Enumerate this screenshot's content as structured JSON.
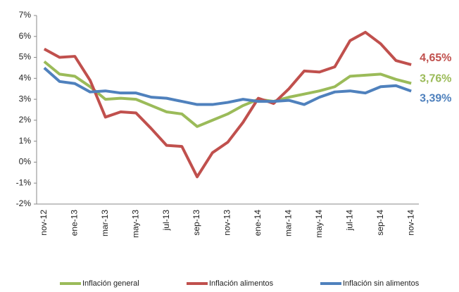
{
  "chart_data": {
    "type": "line",
    "categories": [
      "nov-12",
      null,
      "ene-13",
      null,
      "mar-13",
      null,
      "may-13",
      null,
      "jul-13",
      null,
      "sep-13",
      null,
      "nov-13",
      null,
      "ene-14",
      null,
      "mar-14",
      null,
      "may-14",
      null,
      "jul-14",
      null,
      "sep-14",
      null,
      "nov-14"
    ],
    "series": [
      {
        "name": "Inflación general",
        "color": "#9bbb59",
        "values": [
          4.8,
          4.2,
          4.1,
          3.6,
          3.0,
          3.05,
          3.0,
          2.7,
          2.4,
          2.3,
          1.7,
          2.0,
          2.3,
          2.7,
          3.0,
          2.9,
          3.1,
          3.25,
          3.4,
          3.6,
          4.1,
          4.15,
          4.2,
          3.95,
          3.76
        ],
        "value_labels": [
          null,
          null,
          null,
          null,
          null,
          null,
          null,
          null,
          null,
          null,
          null,
          null,
          null,
          null,
          null,
          null,
          null,
          null,
          null,
          null,
          null,
          null,
          null,
          null,
          "3,76%"
        ]
      },
      {
        "name": "Inflación alimentos",
        "color": "#c0504d",
        "values": [
          5.4,
          5.0,
          5.05,
          3.9,
          2.15,
          2.4,
          2.35,
          1.6,
          0.8,
          0.75,
          -0.7,
          0.45,
          0.95,
          1.9,
          3.05,
          2.8,
          3.5,
          4.35,
          4.3,
          4.55,
          5.8,
          6.2,
          5.65,
          4.85,
          4.65
        ],
        "value_labels": [
          null,
          null,
          null,
          null,
          null,
          null,
          null,
          null,
          null,
          null,
          null,
          null,
          null,
          null,
          null,
          null,
          null,
          null,
          null,
          null,
          null,
          null,
          null,
          null,
          "4,65%"
        ]
      },
      {
        "name": "Inflación sin alimentos",
        "color": "#4f81bd",
        "values": [
          4.5,
          3.85,
          3.75,
          3.35,
          3.4,
          3.3,
          3.3,
          3.1,
          3.05,
          2.9,
          2.75,
          2.75,
          2.85,
          3.0,
          2.9,
          2.9,
          2.95,
          2.75,
          3.1,
          3.35,
          3.4,
          3.3,
          3.6,
          3.65,
          3.39
        ],
        "value_labels": [
          null,
          null,
          null,
          null,
          null,
          null,
          null,
          null,
          null,
          null,
          null,
          null,
          null,
          null,
          null,
          null,
          null,
          null,
          null,
          null,
          null,
          null,
          null,
          null,
          "3,39%"
        ]
      }
    ],
    "ylim": [
      -2,
      7
    ],
    "yticks": [
      {
        "value": -2,
        "label": "-2%"
      },
      {
        "value": -1,
        "label": "-1%"
      },
      {
        "value": 0,
        "label": "0%"
      },
      {
        "value": 1,
        "label": "1%"
      },
      {
        "value": 2,
        "label": "2%"
      },
      {
        "value": 3,
        "label": "3%"
      },
      {
        "value": 4,
        "label": "4%"
      },
      {
        "value": 5,
        "label": "5%"
      },
      {
        "value": 6,
        "label": "6%"
      },
      {
        "value": 7,
        "label": "7%"
      }
    ],
    "grid": false,
    "legend": "bottom"
  }
}
